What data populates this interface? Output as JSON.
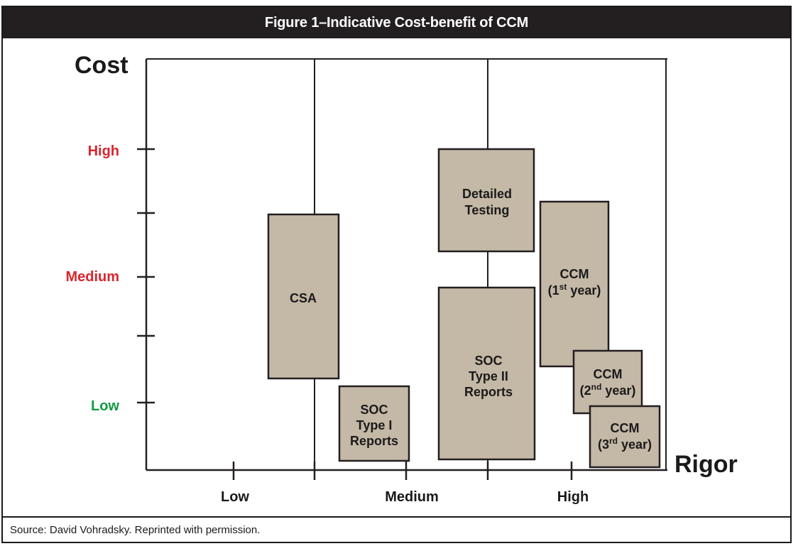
{
  "figure": {
    "title": "Figure 1–Indicative Cost-benefit of CCM",
    "source": "Source:  David Vohradsky. Reprinted with permission."
  },
  "axes": {
    "y_title": "Cost",
    "x_title": "Rigor",
    "y_ticks": [
      {
        "label": "High",
        "color": "#d7262e"
      },
      {
        "label": "Medium",
        "color": "#d7262e"
      },
      {
        "label": "Low",
        "color": "#139a43"
      }
    ],
    "x_ticks": [
      "Low",
      "Medium",
      "High"
    ]
  },
  "boxes": [
    {
      "id": "csa",
      "lines": [
        "CSA"
      ]
    },
    {
      "id": "soc1",
      "lines": [
        "SOC",
        "Type I",
        "Reports"
      ]
    },
    {
      "id": "detailed",
      "lines": [
        "Detailed",
        "Testing"
      ]
    },
    {
      "id": "soc2",
      "lines": [
        "SOC",
        "Type II",
        "Reports"
      ]
    },
    {
      "id": "ccm1",
      "line1": "CCM",
      "line2_pre": "(1",
      "line2_sup": "st",
      "line2_post": " year)"
    },
    {
      "id": "ccm2",
      "line1": "CCM",
      "line2_pre": "(2",
      "line2_sup": "nd",
      "line2_post": " year)"
    },
    {
      "id": "ccm3",
      "line1": "CCM",
      "line2_pre": "(3",
      "line2_sup": "rd",
      "line2_post": " year)"
    }
  ],
  "colors": {
    "box_fill": "#c4b8a6",
    "stroke": "#231f20"
  }
}
